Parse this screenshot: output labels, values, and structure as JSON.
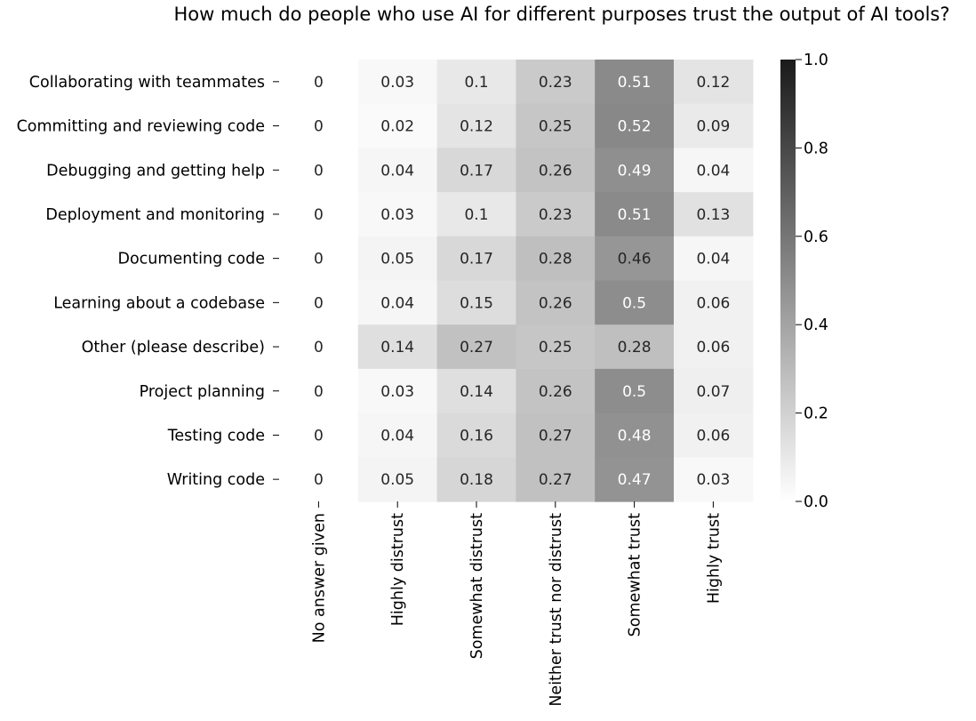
{
  "chart_data": {
    "type": "heatmap",
    "title": "How much do people who use AI for different purposes trust the output of AI tools?",
    "xlabel": "",
    "ylabel": "",
    "rows": [
      "Collaborating with teammates",
      "Committing and reviewing code",
      "Debugging and getting help",
      "Deployment and monitoring",
      "Documenting code",
      "Learning about a codebase",
      "Other (please describe)",
      "Project planning",
      "Testing code",
      "Writing code"
    ],
    "columns": [
      "No answer given",
      "Highly distrust",
      "Somewhat distrust",
      "Neither trust nor distrust",
      "Somewhat trust",
      "Highly trust"
    ],
    "values": [
      [
        0,
        0.03,
        0.1,
        0.23,
        0.51,
        0.12
      ],
      [
        0,
        0.02,
        0.12,
        0.25,
        0.52,
        0.09
      ],
      [
        0,
        0.04,
        0.17,
        0.26,
        0.49,
        0.04
      ],
      [
        0,
        0.03,
        0.1,
        0.23,
        0.51,
        0.13
      ],
      [
        0,
        0.05,
        0.17,
        0.28,
        0.46,
        0.04
      ],
      [
        0,
        0.04,
        0.15,
        0.26,
        0.5,
        0.06
      ],
      [
        0,
        0.14,
        0.27,
        0.25,
        0.28,
        0.06
      ],
      [
        0,
        0.03,
        0.14,
        0.26,
        0.5,
        0.07
      ],
      [
        0,
        0.04,
        0.16,
        0.27,
        0.48,
        0.06
      ],
      [
        0,
        0.05,
        0.18,
        0.27,
        0.47,
        0.03
      ]
    ],
    "value_range": [
      0,
      1.0
    ],
    "colormap": {
      "low": "#ffffff",
      "high": "#1a1a1a"
    },
    "colorbar": {
      "ticks": [
        0.0,
        0.2,
        0.4,
        0.6,
        0.8,
        1.0
      ],
      "tick_labels": [
        "0.0",
        "0.2",
        "0.4",
        "0.6",
        "0.8",
        "1.0"
      ]
    },
    "annotations": true,
    "grid": false
  }
}
